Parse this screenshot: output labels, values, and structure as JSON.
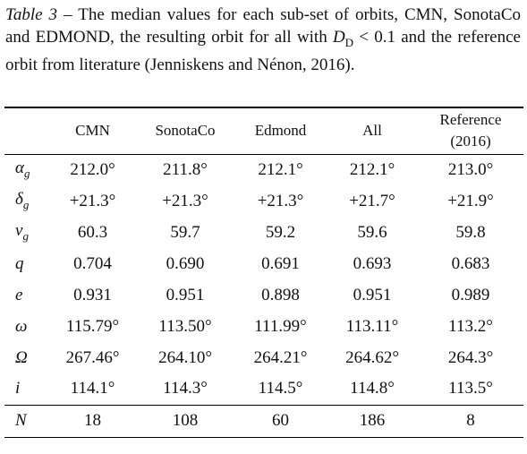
{
  "caption": {
    "label": "Table 3",
    "text_before": " – The median values for each sub-set of orbits, CMN, SonotaCo and EDMOND, the resulting orbit for all with ",
    "symbol": "D",
    "subscript": "D",
    "text_after": " < 0.1 and the reference orbit from literature (Jenniskens and Nénon, 2016)."
  },
  "table": {
    "header": [
      "CMN",
      "SonotaCo",
      "Edmond",
      "All",
      [
        "Reference",
        "(2016)"
      ]
    ],
    "rows": [
      {
        "symbol": "α",
        "sub": "g",
        "values": [
          "212.0°",
          "211.8°",
          "212.1°",
          "212.1°",
          "213.0°"
        ]
      },
      {
        "symbol": "δ",
        "sub": "g",
        "values": [
          "+21.3°",
          "+21.3°",
          "+21.3°",
          "+21.7°",
          "+21.9°"
        ]
      },
      {
        "symbol": "v",
        "sub": "g",
        "values": [
          "60.3",
          "59.7",
          "59.2",
          "59.6",
          "59.8"
        ]
      },
      {
        "symbol": "q",
        "values": [
          "0.704",
          "0.690",
          "0.691",
          "0.693",
          "0.683"
        ]
      },
      {
        "symbol": "e",
        "values": [
          "0.931",
          "0.951",
          "0.898",
          "0.951",
          "0.989"
        ]
      },
      {
        "symbol": "ω",
        "values": [
          "115.79°",
          "113.50°",
          "111.99°",
          "113.11°",
          "113.2°"
        ]
      },
      {
        "symbol": "Ω",
        "values": [
          "267.46°",
          "264.10°",
          "264.21°",
          "264.62°",
          "264.3°"
        ]
      },
      {
        "symbol": "i",
        "values": [
          "114.1°",
          "114.3°",
          "114.5°",
          "114.8°",
          "113.5°"
        ]
      },
      {
        "symbol": "N",
        "values": [
          "18",
          "108",
          "60",
          "186",
          "8"
        ]
      }
    ]
  }
}
